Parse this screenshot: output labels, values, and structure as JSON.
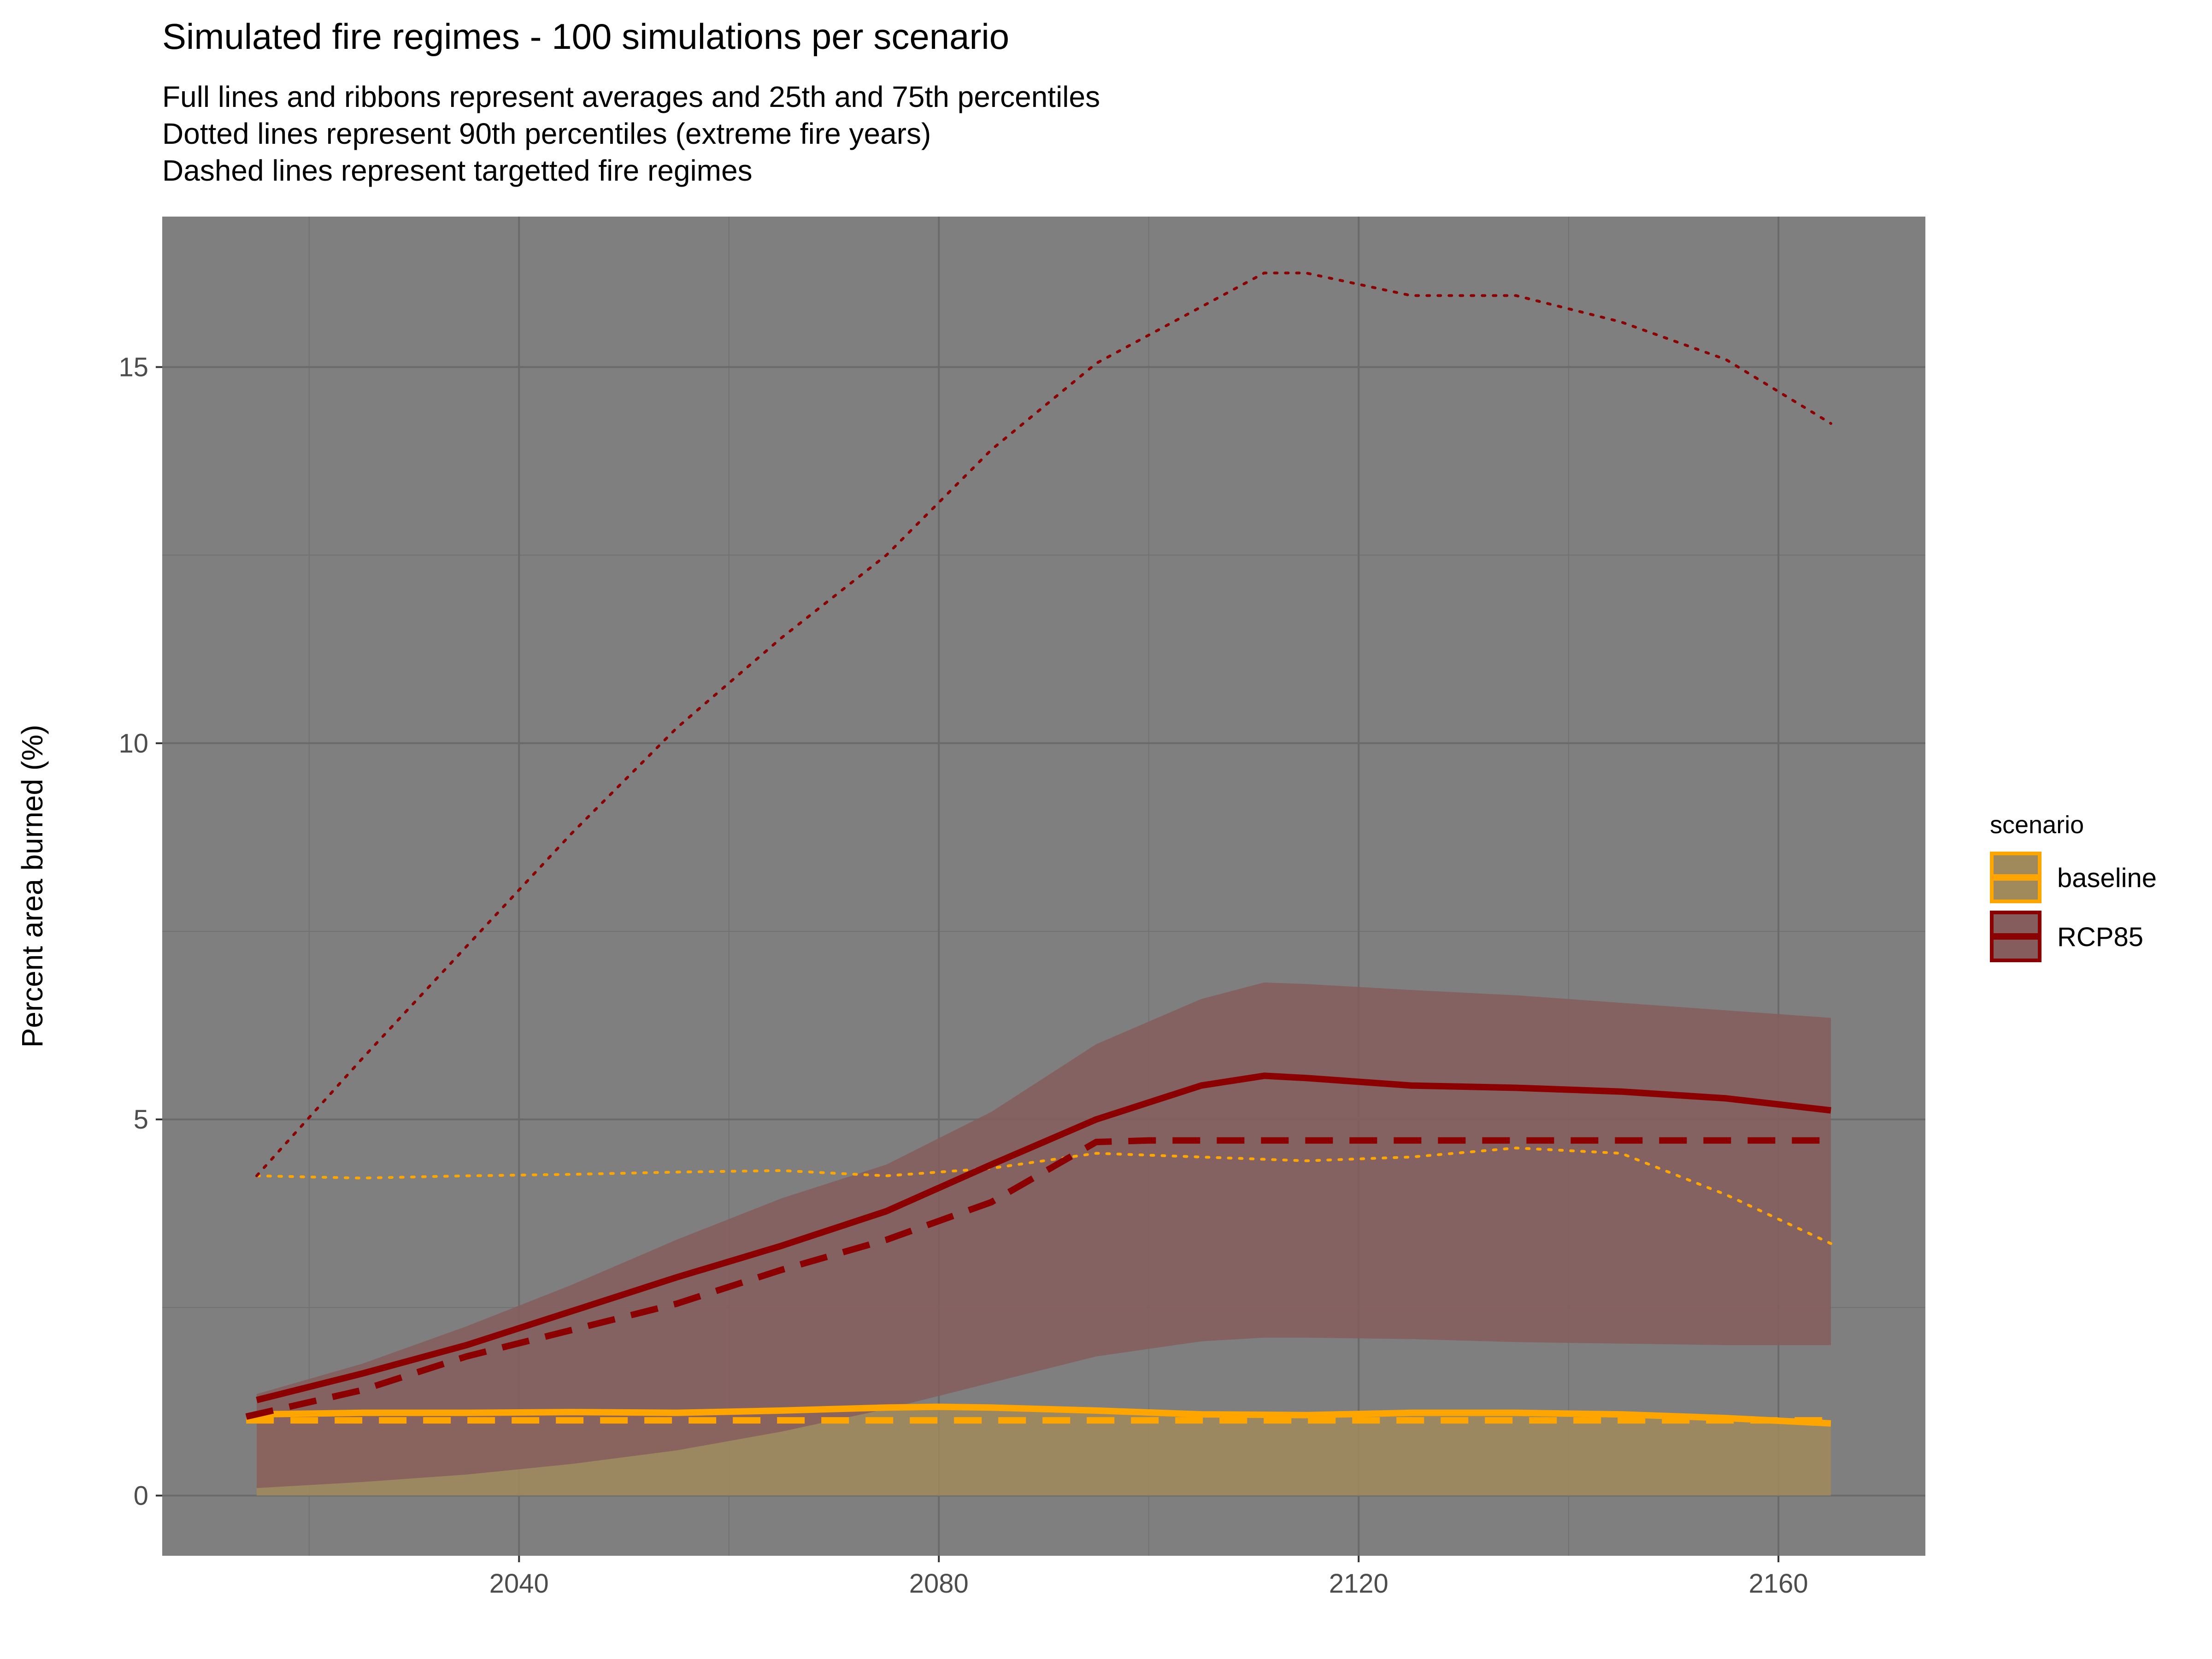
{
  "chart_data": {
    "type": "line",
    "title": "Simulated fire regimes - 100 simulations per scenario",
    "subtitle": [
      "Full lines and ribbons represent averages and 25th and 75th percentiles",
      "Dotted lines represent 90th percentiles (extreme fire years)",
      "Dashed lines represent targetted fire regimes"
    ],
    "xlabel": "",
    "ylabel": "Percent area burned (%)",
    "xlim": [
      2006,
      2174
    ],
    "ylim": [
      -0.8,
      17.0
    ],
    "x_ticks": [
      2040,
      2080,
      2120,
      2160
    ],
    "y_ticks": [
      0,
      5,
      10,
      15
    ],
    "grid": true,
    "panel_background": "#7f7f7f",
    "legend": {
      "title": "scenario",
      "position": "right",
      "entries": [
        "baseline",
        "RCP85"
      ]
    },
    "colors": {
      "baseline": "#ffa500",
      "RCP85": "#8b0000",
      "baseline_ribbon": "#a08a5c",
      "RCP85_ribbon": "#865d5d"
    },
    "series": [
      {
        "name": "baseline",
        "x": [
          2015,
          2025,
          2035,
          2045,
          2055,
          2065,
          2075,
          2080,
          2085,
          2095,
          2105,
          2115,
          2125,
          2135,
          2145,
          2155,
          2165
        ],
        "mean": [
          1.08,
          1.1,
          1.1,
          1.11,
          1.1,
          1.13,
          1.17,
          1.18,
          1.17,
          1.13,
          1.08,
          1.07,
          1.1,
          1.1,
          1.08,
          1.03,
          0.96
        ],
        "p25": [
          0,
          0,
          0,
          0,
          0,
          0,
          0,
          0,
          0,
          0,
          0,
          0,
          0,
          0,
          0,
          0,
          0
        ],
        "p75": [
          1.08,
          1.1,
          1.1,
          1.11,
          1.1,
          1.13,
          1.17,
          1.18,
          1.17,
          1.13,
          1.08,
          1.07,
          1.1,
          1.1,
          1.08,
          1.03,
          0.96
        ],
        "p90": [
          4.25,
          4.22,
          4.25,
          4.27,
          4.3,
          4.32,
          4.25,
          4.3,
          4.35,
          4.55,
          4.5,
          4.45,
          4.5,
          4.62,
          4.55,
          4.0,
          3.35
        ],
        "target_x": [
          2014,
          2165
        ],
        "target": [
          1.0,
          1.0
        ]
      },
      {
        "name": "RCP85",
        "x": [
          2015,
          2025,
          2035,
          2045,
          2055,
          2065,
          2075,
          2085,
          2095,
          2105,
          2111,
          2115,
          2125,
          2135,
          2145,
          2155,
          2165
        ],
        "mean": [
          1.27,
          1.62,
          2.0,
          2.45,
          2.9,
          3.32,
          3.78,
          4.4,
          5.0,
          5.45,
          5.58,
          5.55,
          5.45,
          5.42,
          5.37,
          5.28,
          5.12
        ],
        "p25": [
          0.1,
          0.18,
          0.28,
          0.42,
          0.6,
          0.85,
          1.15,
          1.5,
          1.85,
          2.05,
          2.1,
          2.1,
          2.08,
          2.04,
          2.02,
          2.0,
          2.0
        ],
        "p75": [
          1.35,
          1.75,
          2.25,
          2.8,
          3.4,
          3.95,
          4.4,
          5.1,
          6.0,
          6.6,
          6.82,
          6.8,
          6.72,
          6.65,
          6.55,
          6.45,
          6.35
        ],
        "p90": [
          4.25,
          5.8,
          7.3,
          8.8,
          10.2,
          11.4,
          12.5,
          13.9,
          15.05,
          15.8,
          16.25,
          16.25,
          15.95,
          15.95,
          15.6,
          15.1,
          14.25
        ],
        "target_x": [
          2014,
          2025,
          2035,
          2045,
          2055,
          2065,
          2075,
          2085,
          2095,
          2100,
          2165
        ],
        "target": [
          1.05,
          1.4,
          1.85,
          2.2,
          2.55,
          3.0,
          3.4,
          3.9,
          4.7,
          4.72,
          4.72
        ]
      }
    ]
  }
}
